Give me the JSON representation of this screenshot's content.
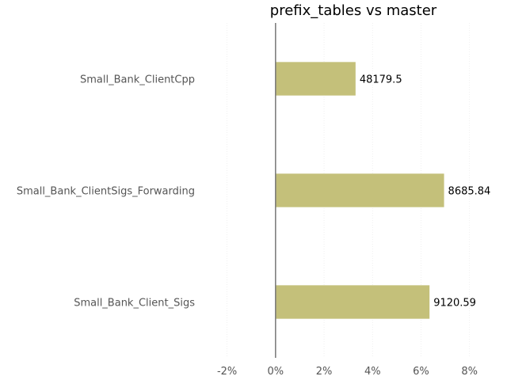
{
  "chart_data": {
    "type": "bar",
    "orientation": "horizontal",
    "title": "prefix_tables vs master",
    "xlabel": "",
    "ylabel": "",
    "xlim": [
      -3,
      8.5
    ],
    "x_ticks": [
      {
        "value": -2,
        "label": "-2%"
      },
      {
        "value": 0,
        "label": "0%"
      },
      {
        "value": 2,
        "label": "2%"
      },
      {
        "value": 4,
        "label": "4%"
      },
      {
        "value": 6,
        "label": "6%"
      },
      {
        "value": 8,
        "label": "8%"
      }
    ],
    "grid": true,
    "bar_color": "#c4c07a",
    "bars": [
      {
        "category": "Small_Bank_ClientCpp",
        "value": 3.3,
        "label": "48179.5"
      },
      {
        "category": "Small_Bank_ClientSigs_Forwarding",
        "value": 6.95,
        "label": "8685.84"
      },
      {
        "category": "Small_Bank_Client_Sigs",
        "value": 6.35,
        "label": "9120.59"
      }
    ]
  }
}
